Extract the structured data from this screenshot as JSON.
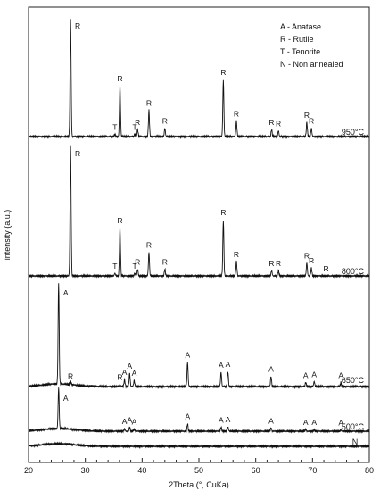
{
  "chart_data": {
    "type": "line",
    "xlabel": "2Theta (°, CuKa)",
    "ylabel": "intensity (a.u.)",
    "xlim": [
      20,
      80
    ],
    "x_ticks": [
      "20",
      "30",
      "40",
      "50",
      "60",
      "70",
      "80"
    ],
    "legend": {
      "placement": "top-right",
      "entries": [
        "A - Anatase",
        "R - Rutile",
        "T - Tenorite",
        "N - Non annealed"
      ]
    },
    "series": [
      {
        "name": "950°C",
        "peaks": [
          {
            "x": 27.4,
            "h": 1.0,
            "label": "R"
          },
          {
            "x": 35.2,
            "h": 0.02,
            "label": "T"
          },
          {
            "x": 36.1,
            "h": 0.43,
            "label": "R"
          },
          {
            "x": 38.7,
            "h": 0.02,
            "label": "T"
          },
          {
            "x": 39.2,
            "h": 0.06,
            "label": "R"
          },
          {
            "x": 41.2,
            "h": 0.22,
            "label": "R"
          },
          {
            "x": 44.0,
            "h": 0.07,
            "label": "R"
          },
          {
            "x": 54.3,
            "h": 0.48,
            "label": "R"
          },
          {
            "x": 56.6,
            "h": 0.13,
            "label": "R"
          },
          {
            "x": 62.8,
            "h": 0.06,
            "label": "R"
          },
          {
            "x": 64.0,
            "h": 0.05,
            "label": "R"
          },
          {
            "x": 69.0,
            "h": 0.12,
            "label": "R"
          },
          {
            "x": 69.8,
            "h": 0.07,
            "label": "R"
          }
        ]
      },
      {
        "name": "800°C",
        "peaks": [
          {
            "x": 27.4,
            "h": 1.0,
            "label": "R"
          },
          {
            "x": 35.2,
            "h": 0.02,
            "label": "T"
          },
          {
            "x": 36.1,
            "h": 0.37,
            "label": "R"
          },
          {
            "x": 38.7,
            "h": 0.02,
            "label": "T"
          },
          {
            "x": 39.2,
            "h": 0.05,
            "label": "R"
          },
          {
            "x": 41.2,
            "h": 0.18,
            "label": "R"
          },
          {
            "x": 44.0,
            "h": 0.05,
            "label": "R"
          },
          {
            "x": 54.3,
            "h": 0.43,
            "label": "R"
          },
          {
            "x": 56.6,
            "h": 0.11,
            "label": "R"
          },
          {
            "x": 62.8,
            "h": 0.04,
            "label": "R"
          },
          {
            "x": 64.0,
            "h": 0.04,
            "label": "R"
          },
          {
            "x": 69.0,
            "h": 0.1,
            "label": "R"
          },
          {
            "x": 69.8,
            "h": 0.06,
            "label": "R"
          },
          {
            "x": 72.4,
            "h": 0.0,
            "label": "R"
          }
        ]
      },
      {
        "name": "650°C",
        "peaks": [
          {
            "x": 25.3,
            "h": 1.0,
            "label": "A"
          },
          {
            "x": 27.4,
            "h": 0.03,
            "label": "R"
          },
          {
            "x": 36.1,
            "h": 0.02,
            "label": "R"
          },
          {
            "x": 36.9,
            "h": 0.07,
            "label": "A"
          },
          {
            "x": 37.8,
            "h": 0.13,
            "label": "A"
          },
          {
            "x": 38.6,
            "h": 0.06,
            "label": "A"
          },
          {
            "x": 48.0,
            "h": 0.24,
            "label": "A"
          },
          {
            "x": 53.9,
            "h": 0.14,
            "label": "A"
          },
          {
            "x": 55.1,
            "h": 0.15,
            "label": "A"
          },
          {
            "x": 62.7,
            "h": 0.1,
            "label": "A"
          },
          {
            "x": 68.8,
            "h": 0.04,
            "label": "A"
          },
          {
            "x": 70.3,
            "h": 0.05,
            "label": "A"
          },
          {
            "x": 75.0,
            "h": 0.04,
            "label": "A"
          }
        ]
      },
      {
        "name": "500°C",
        "peaks": [
          {
            "x": 25.3,
            "h": 1.0,
            "label": "A"
          },
          {
            "x": 36.9,
            "h": 0.06,
            "label": "A"
          },
          {
            "x": 37.8,
            "h": 0.1,
            "label": "A"
          },
          {
            "x": 38.6,
            "h": 0.05,
            "label": "A"
          },
          {
            "x": 48.0,
            "h": 0.18,
            "label": "A"
          },
          {
            "x": 53.9,
            "h": 0.1,
            "label": "A"
          },
          {
            "x": 55.1,
            "h": 0.11,
            "label": "A"
          },
          {
            "x": 62.7,
            "h": 0.08,
            "label": "A"
          },
          {
            "x": 68.8,
            "h": 0.04,
            "label": "A"
          },
          {
            "x": 70.3,
            "h": 0.04,
            "label": "A"
          },
          {
            "x": 75.0,
            "h": 0.03,
            "label": "A"
          }
        ]
      },
      {
        "name": "N",
        "peaks": []
      }
    ]
  }
}
